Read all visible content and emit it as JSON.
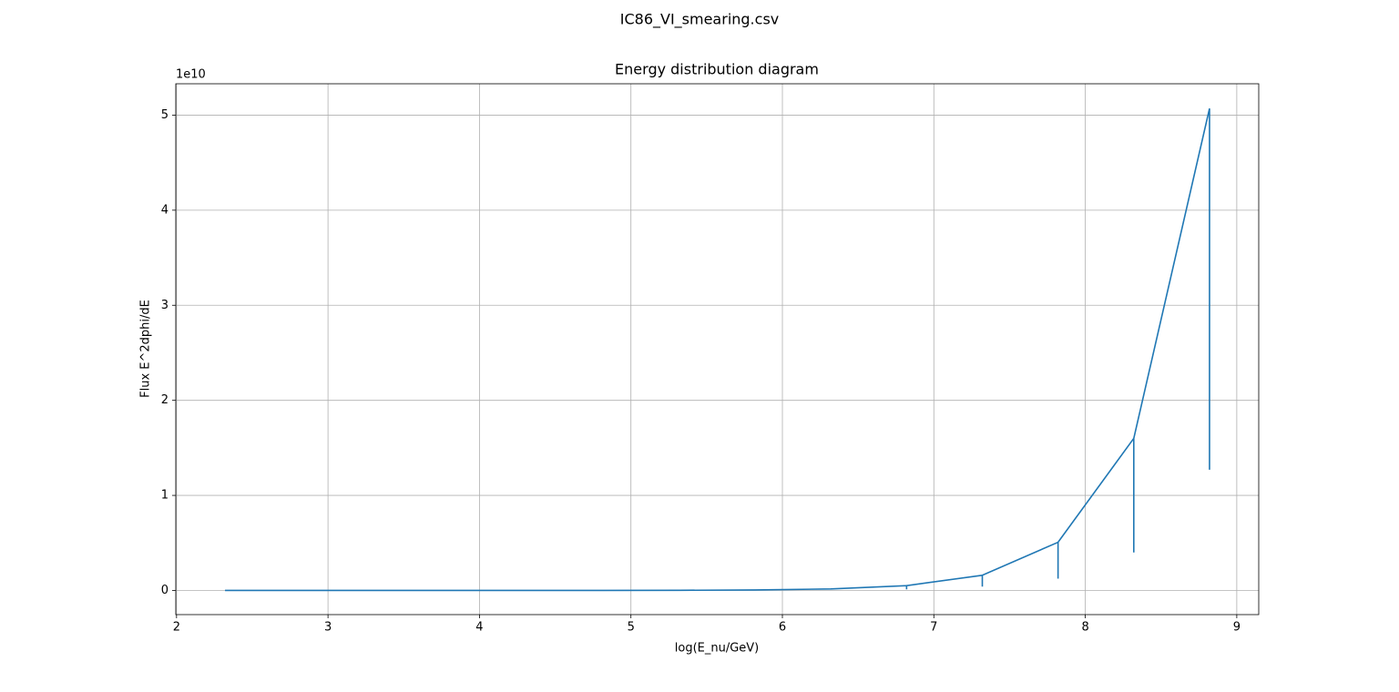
{
  "chart_data": {
    "type": "line",
    "suptitle": "IC86_VI_smearing.csv",
    "title": "Energy distribution diagram",
    "xlabel": "log(E_nu/GeV)",
    "ylabel": "Flux E^2dphi/dE",
    "y_offset_label": "1e10",
    "x": [
      2.32,
      2.82,
      3.32,
      3.82,
      4.32,
      4.82,
      5.32,
      5.82,
      6.32,
      6.82,
      6.82,
      6.82,
      7.32,
      7.32,
      7.32,
      7.82,
      7.82,
      7.82,
      8.32,
      8.32,
      8.32,
      8.82,
      8.82
    ],
    "series": [
      {
        "color": "#1f77b4",
        "values": [
          1.6e-06,
          5e-06,
          1.6e-05,
          5e-05,
          0.00016,
          0.0005,
          0.0016,
          0.0051,
          0.016,
          0.0507,
          0.012,
          0.0507,
          0.16,
          0.04,
          0.16,
          0.507,
          0.124,
          0.507,
          1.6,
          0.4,
          1.6,
          5.07,
          1.27
        ]
      }
    ],
    "xlim": [
      1.995,
      9.145
    ],
    "xticks": [
      2,
      3,
      4,
      5,
      6,
      7,
      8,
      9
    ],
    "ylim": [
      -0.254,
      5.33
    ],
    "yticks": [
      0,
      1,
      2,
      3,
      4,
      5
    ],
    "grid": true
  }
}
